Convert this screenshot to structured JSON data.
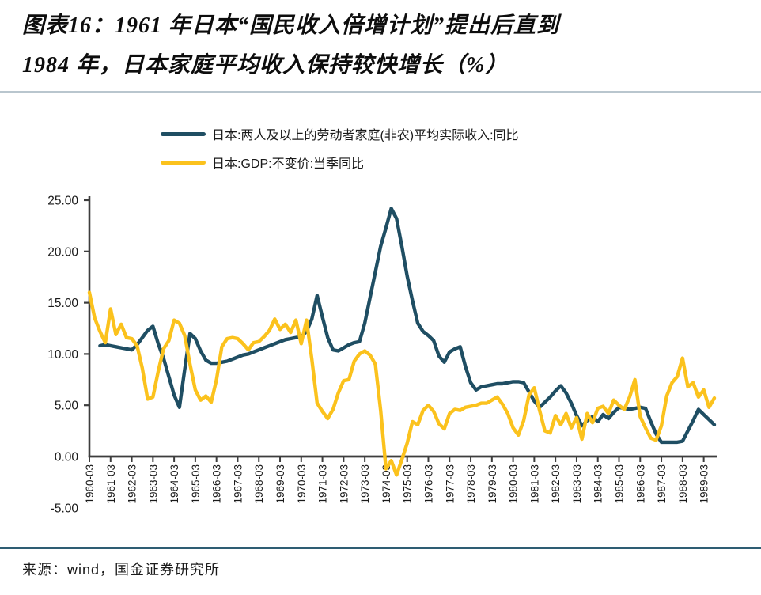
{
  "title": {
    "line1": "图表16：1961 年日本“国民收入倍增计划”提出后直到",
    "line2": "1984 年，日本家庭平均收入保持较快增长（%）"
  },
  "source": "来源：wind，国金证券研究所",
  "colors": {
    "income_line": "#1F4E63",
    "gdp_line": "#FBC21D",
    "axis": "#3d3d3d",
    "title_divider": "#b9c6ce",
    "footer_divider": "#2e5d73"
  },
  "chart_data": {
    "type": "line",
    "x_start": "1960-03",
    "x_freq": "quarterly",
    "x_tick_labels": [
      "1960-03",
      "1961-03",
      "1962-03",
      "1963-03",
      "1964-03",
      "1965-03",
      "1966-03",
      "1967-03",
      "1968-03",
      "1969-03",
      "1970-03",
      "1971-03",
      "1972-03",
      "1973-03",
      "1974-03",
      "1975-03",
      "1976-03",
      "1977-03",
      "1978-03",
      "1979-03",
      "1980-03",
      "1981-03",
      "1982-03",
      "1983-03",
      "1984-03",
      "1985-03",
      "1986-03",
      "1987-03",
      "1988-03",
      "1989-03"
    ],
    "y_ticks": [
      25,
      20,
      15,
      10,
      5,
      0,
      -5
    ],
    "y_tick_labels": [
      "25.00",
      "20.00",
      "15.00",
      "10.00",
      "5.00",
      "0.00",
      "-5.00"
    ],
    "ylim": [
      -5,
      25
    ],
    "grid": false,
    "legend_position": "top",
    "series": [
      {
        "name": "日本:两人及以上的劳动者家庭(非农)平均实际收入:同比",
        "color": "#1F4E63",
        "values": [
          null,
          null,
          10.8,
          10.9,
          10.8,
          10.7,
          10.6,
          10.5,
          10.4,
          10.9,
          11.6,
          12.3,
          12.7,
          11.0,
          9.6,
          7.8,
          6.0,
          4.8,
          8.5,
          12.0,
          11.5,
          10.3,
          9.4,
          9.1,
          9.1,
          9.2,
          9.3,
          9.5,
          9.7,
          9.9,
          10.0,
          10.2,
          10.4,
          10.6,
          10.8,
          11.0,
          11.2,
          11.4,
          11.5,
          11.6,
          11.7,
          12.2,
          13.4,
          15.7,
          13.6,
          11.6,
          10.4,
          10.3,
          10.6,
          10.9,
          11.1,
          11.2,
          13.0,
          15.5,
          18.0,
          20.5,
          22.3,
          24.2,
          23.2,
          20.5,
          17.6,
          15.2,
          13.0,
          12.2,
          11.8,
          11.3,
          9.8,
          9.2,
          10.2,
          10.5,
          10.7,
          8.8,
          7.2,
          6.5,
          6.8,
          6.9,
          7.0,
          7.1,
          7.1,
          7.2,
          7.3,
          7.3,
          7.2,
          6.3,
          5.4,
          4.8,
          5.3,
          5.8,
          6.4,
          6.9,
          6.2,
          5.2,
          4.0,
          3.0,
          3.5,
          3.9,
          3.4,
          4.1,
          3.7,
          4.3,
          4.8,
          4.7,
          4.6,
          4.7,
          4.8,
          4.7,
          3.4,
          2.2,
          1.4,
          1.4,
          1.4,
          1.4,
          1.5,
          2.5,
          3.5,
          4.6,
          4.1,
          3.6,
          3.1
        ]
      },
      {
        "name": "日本:GDP:不变价:当季同比",
        "color": "#FBC21D",
        "values": [
          16.0,
          13.5,
          12.2,
          11.1,
          14.4,
          11.9,
          12.9,
          11.6,
          11.5,
          10.8,
          8.6,
          5.6,
          5.8,
          8.3,
          10.5,
          11.3,
          13.3,
          13.0,
          11.8,
          9.0,
          6.5,
          5.5,
          5.9,
          5.3,
          7.5,
          10.7,
          11.5,
          11.6,
          11.5,
          11.0,
          10.4,
          11.1,
          11.2,
          11.7,
          12.3,
          13.4,
          12.4,
          12.9,
          12.1,
          13.3,
          11.0,
          13.3,
          9.5,
          5.2,
          4.4,
          3.7,
          4.6,
          6.2,
          7.4,
          7.5,
          9.3,
          10.0,
          10.3,
          9.9,
          9.0,
          4.5,
          -1.2,
          -0.4,
          -1.8,
          -0.3,
          1.3,
          3.4,
          3.1,
          4.5,
          5.0,
          4.4,
          3.2,
          2.7,
          4.2,
          4.6,
          4.5,
          4.8,
          4.9,
          5.0,
          5.2,
          5.2,
          5.5,
          5.8,
          5.1,
          4.2,
          2.8,
          2.1,
          3.5,
          6.0,
          6.7,
          4.5,
          2.5,
          2.3,
          4.0,
          3.1,
          4.2,
          2.8,
          3.8,
          1.7,
          4.2,
          3.3,
          4.7,
          4.9,
          4.2,
          5.5,
          5.0,
          4.6,
          5.8,
          7.5,
          3.9,
          2.8,
          1.8,
          1.6,
          3.0,
          5.9,
          7.2,
          7.8,
          9.6,
          6.8,
          7.2,
          5.8,
          6.5,
          4.8,
          5.7
        ]
      }
    ]
  }
}
